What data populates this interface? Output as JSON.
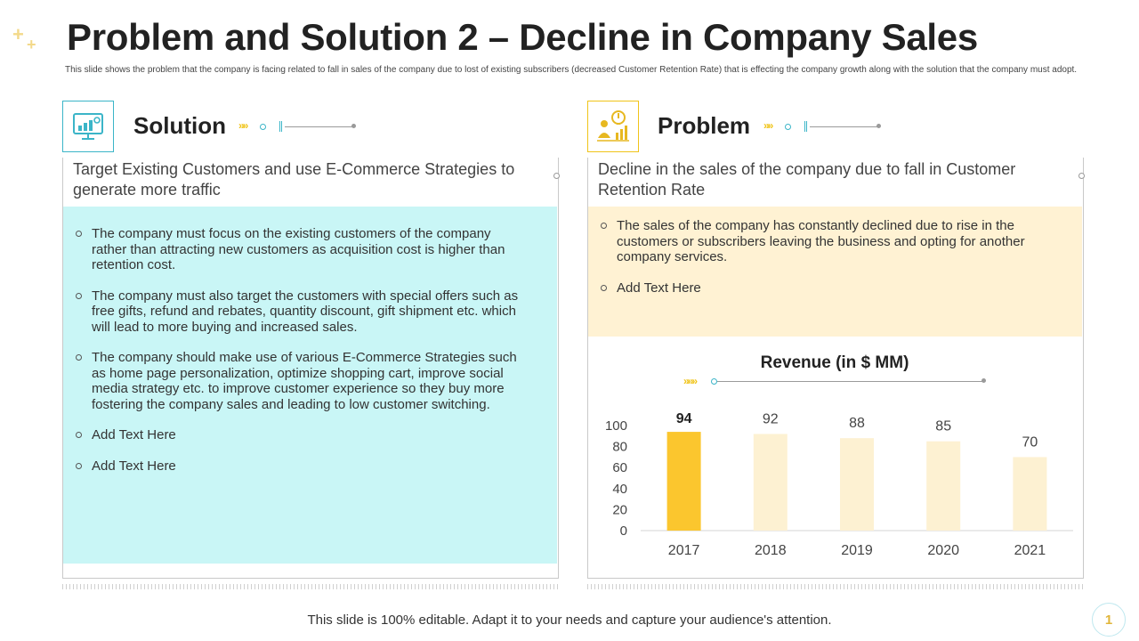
{
  "slide": {
    "title": "Problem and Solution 2 – Decline in Company Sales",
    "subtitle": "This slide shows the problem that the company is facing related to fall in sales of the company due to lost of existing subscribers (decreased Customer Retention Rate) that is effecting the company growth along with the solution that the company must adopt.",
    "footer": "This slide is 100% editable. Adapt it to your needs and capture your audience's attention.",
    "page_number": "1"
  },
  "solution": {
    "heading": "Solution",
    "icon": "monitor-analytics-icon",
    "lead": "Target Existing Customers and use E-Commerce Strategies to generate more traffic",
    "bullets": [
      "The company must focus on the existing customers of the company rather than attracting new customers as acquisition cost is higher than retention cost.",
      "The company must also target the customers with special offers such as free gifts, refund and rebates, quantity discount, gift shipment etc. which will lead to more buying and increased sales.",
      "The company should make use of various E-Commerce Strategies such as home page personalization, optimize shopping cart, improve social media strategy etc. to improve customer experience so they buy more fostering the company sales and leading to low customer switching.",
      "Add Text Here",
      "Add Text Here"
    ],
    "accent": "#3bb5c8",
    "fill": "#c9f6f6"
  },
  "problem": {
    "heading": "Problem",
    "icon": "idea-growth-icon",
    "lead": "Decline in the sales of the company due to fall in Customer Retention Rate",
    "bullets": [
      "The sales of the company has constantly declined due to rise in the customers or subscribers leaving the business and opting for another company services.",
      "Add Text Here"
    ],
    "accent": "#f0c419",
    "fill": "#fff2d3"
  },
  "chart_data": {
    "type": "bar",
    "title": "Revenue (in $ MM)",
    "categories": [
      "2017",
      "2018",
      "2019",
      "2020",
      "2021"
    ],
    "values": [
      94,
      92,
      88,
      85,
      70
    ],
    "y_ticks": [
      "0",
      "20",
      "40",
      "60",
      "80",
      "100"
    ],
    "ylim": [
      0,
      100
    ],
    "highlight_index": 0,
    "colors": {
      "highlight": "#fbc62e",
      "default": "#fdf1d2"
    },
    "grid": false
  }
}
